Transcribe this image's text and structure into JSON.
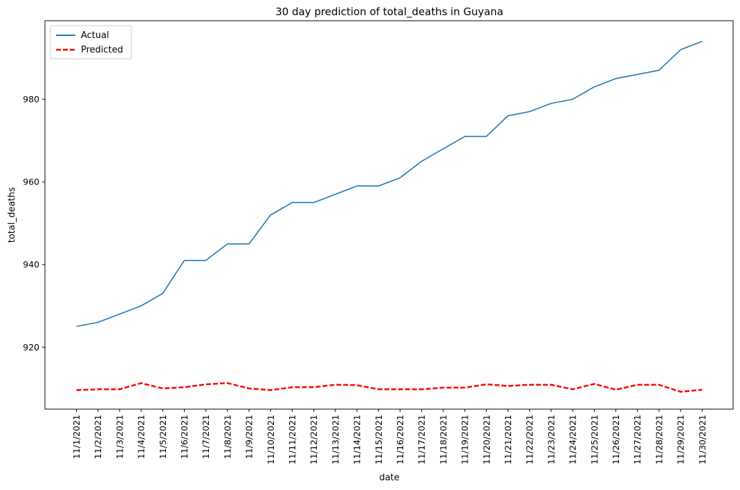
{
  "chart_data": {
    "type": "line",
    "title": "30 day prediction of total_deaths in Guyana",
    "xlabel": "date",
    "ylabel": "total_deaths",
    "categories": [
      "11/1/2021",
      "11/2/2021",
      "11/3/2021",
      "11/4/2021",
      "11/5/2021",
      "11/6/2021",
      "11/7/2021",
      "11/8/2021",
      "11/9/2021",
      "11/10/2021",
      "11/11/2021",
      "11/12/2021",
      "11/13/2021",
      "11/14/2021",
      "11/15/2021",
      "11/16/2021",
      "11/17/2021",
      "11/18/2021",
      "11/19/2021",
      "11/20/2021",
      "11/21/2021",
      "11/22/2021",
      "11/23/2021",
      "11/24/2021",
      "11/25/2021",
      "11/26/2021",
      "11/27/2021",
      "11/28/2021",
      "11/29/2021",
      "11/30/2021"
    ],
    "yticks": [
      920,
      940,
      960,
      980
    ],
    "ylim": [
      905,
      999
    ],
    "legend_position": "top-left",
    "grid": false,
    "series": [
      {
        "name": "Actual",
        "color": "#1f77b4",
        "style": "solid",
        "values": [
          925,
          926,
          928,
          930,
          933,
          941,
          941,
          945,
          945,
          952,
          955,
          955,
          957,
          959,
          959,
          961,
          965,
          968,
          971,
          971,
          976,
          977,
          979,
          980,
          983,
          985,
          986,
          987,
          992,
          994
        ]
      },
      {
        "name": "Predicted",
        "color": "#ff0000",
        "style": "dashed",
        "values": [
          909.6,
          909.8,
          909.8,
          911.3,
          910.0,
          910.3,
          911.0,
          911.3,
          910.0,
          909.6,
          910.3,
          910.3,
          910.9,
          910.8,
          909.8,
          909.8,
          909.8,
          910.2,
          910.2,
          911.0,
          910.6,
          910.9,
          910.9,
          909.8,
          911.1,
          909.7,
          910.9,
          910.9,
          909.2,
          909.7
        ]
      }
    ]
  }
}
